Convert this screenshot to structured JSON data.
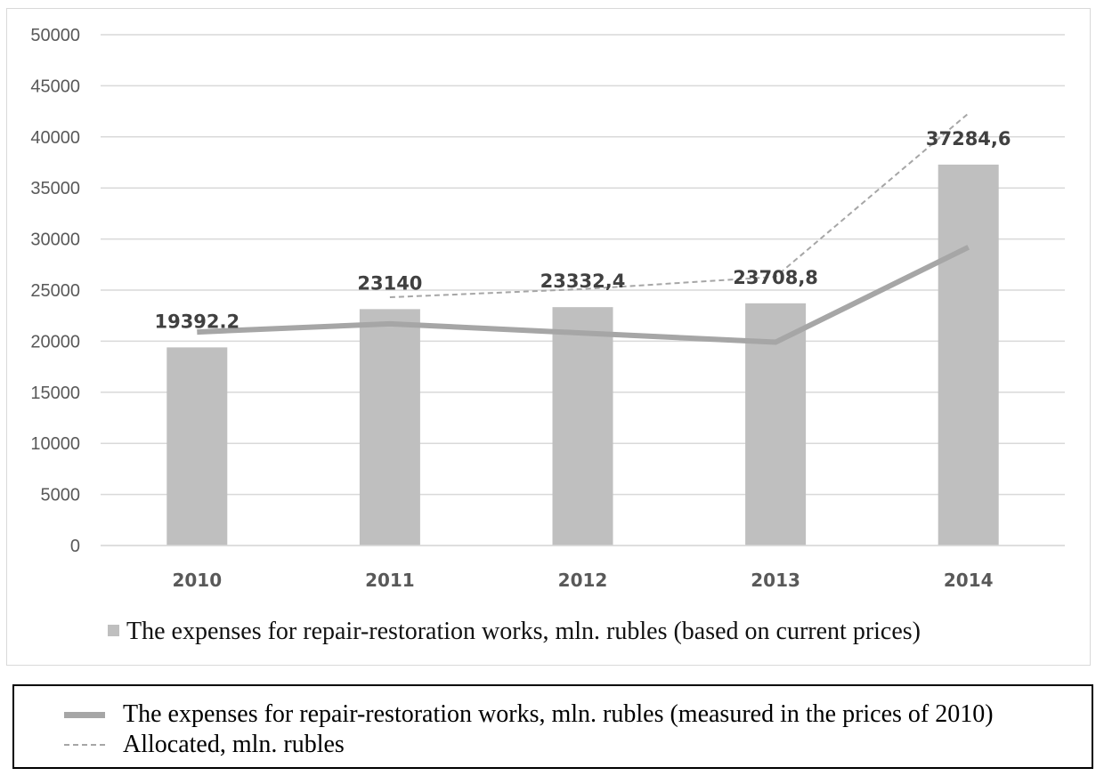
{
  "chart_data": {
    "type": "bar",
    "categories": [
      "2010",
      "2011",
      "2012",
      "2013",
      "2014"
    ],
    "ylim": [
      0,
      50000
    ],
    "yticks": [
      "0",
      "5000",
      "10000",
      "15000",
      "20000",
      "25000",
      "30000",
      "35000",
      "40000",
      "45000",
      "50000"
    ],
    "grid": true,
    "series": [
      {
        "name": "The expenses for repair-restoration works, mln. rubles (based on current prices)",
        "kind": "bar",
        "values": [
          19392.2,
          23140,
          23332.4,
          23708.8,
          37284.6
        ],
        "labels": [
          "19392.2",
          "23140",
          "23332,4",
          "23708,8",
          "37284,6"
        ],
        "color": "#bfbfbf"
      },
      {
        "name": "The expenses for repair-restoration works, mln. rubles (measured in the prices of 2010)",
        "kind": "line",
        "values": [
          20900,
          21700,
          20800,
          19900,
          29200
        ],
        "color": "#a6a6a6"
      },
      {
        "name": "Allocated, mln. rubles",
        "kind": "dashed-line",
        "values": [
          null,
          24300,
          25100,
          26300,
          42300
        ],
        "color": "#a6a6a6"
      }
    ],
    "legend": {
      "inside": "bottom",
      "outside": "below-chart"
    }
  }
}
